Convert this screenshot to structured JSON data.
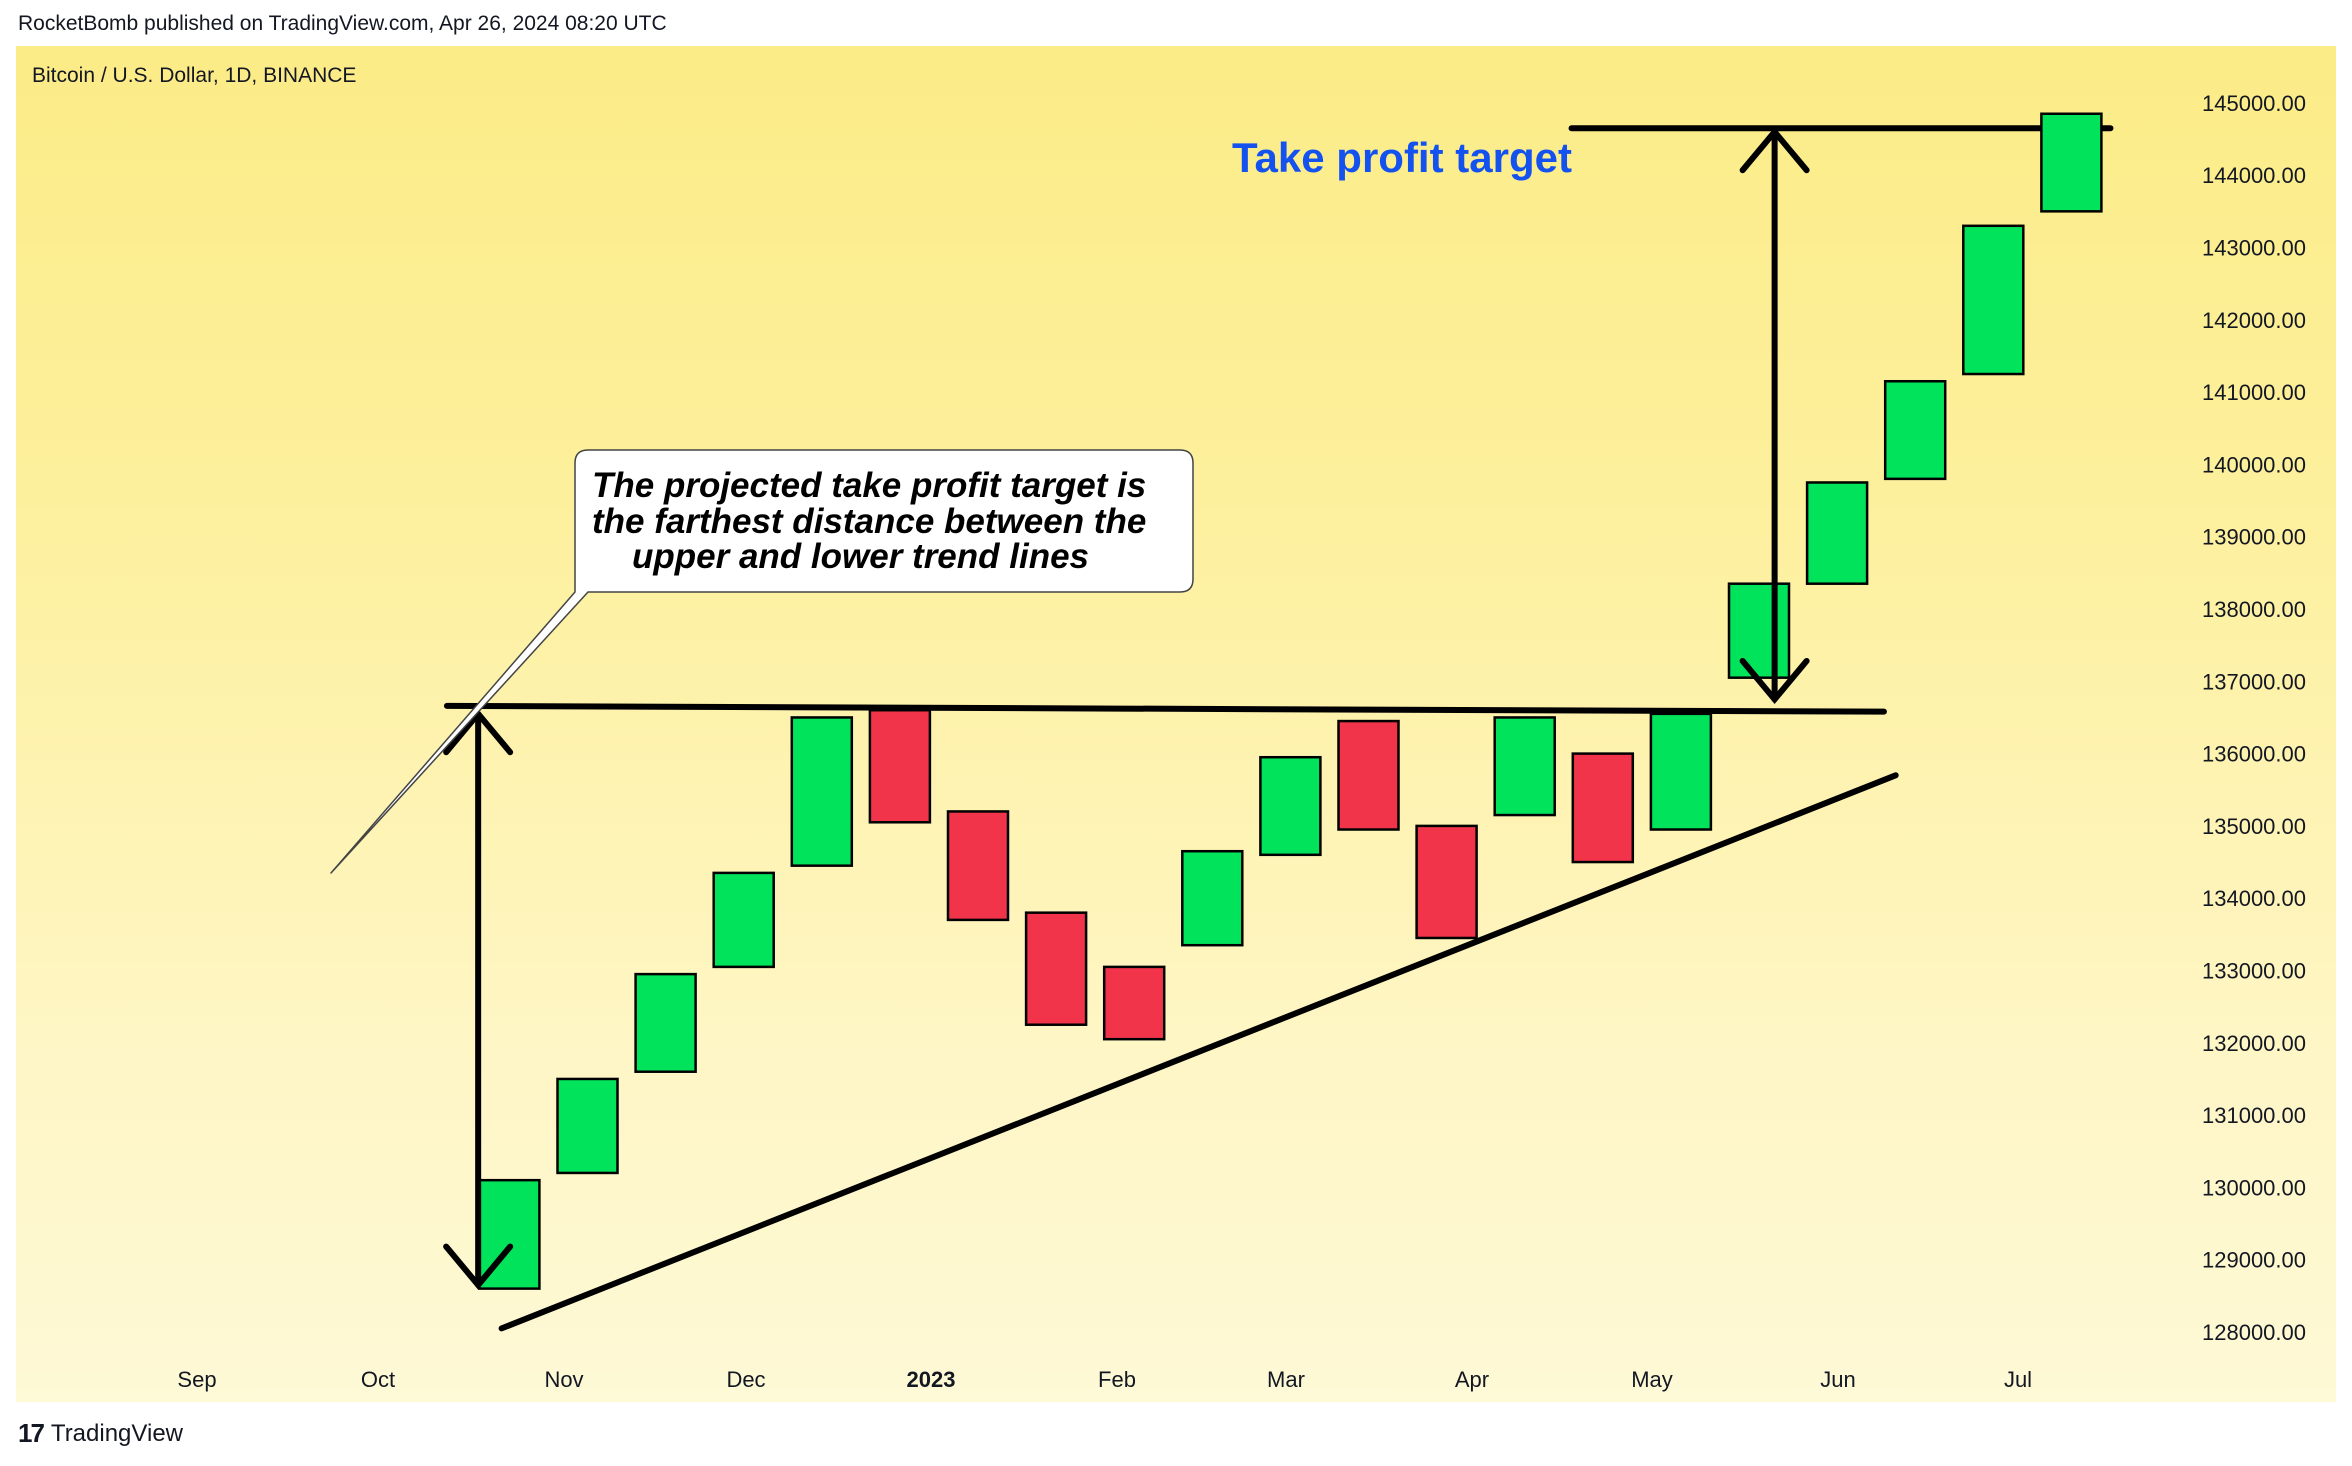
{
  "header": {
    "publisher_line": "RocketBomb published on TradingView.com, Apr 26, 2024 08:20 UTC",
    "symbol_line": "Bitcoin / U.S. Dollar, 1D, BINANCE"
  },
  "footer": {
    "logo_glyph": "17",
    "brand": "TradingView"
  },
  "colors": {
    "up": "#00e35a",
    "down": "#f2344a",
    "annotation": "#1452f0",
    "line": "#000000"
  },
  "chart_data": {
    "type": "candlestick",
    "title": "Bitcoin / U.S. Dollar, 1D, BINANCE",
    "x_tick_labels": [
      "Sep",
      "Oct",
      "Nov",
      "Dec",
      "2023",
      "Feb",
      "Mar",
      "Apr",
      "May",
      "Jun",
      "Jul"
    ],
    "y_tick_labels": [
      "145000.00",
      "144000.00",
      "143000.00",
      "142000.00",
      "141000.00",
      "140000.00",
      "139000.00",
      "138000.00",
      "137000.00",
      "136000.00",
      "135000.00",
      "134000.00",
      "133000.00",
      "132000.00",
      "131000.00",
      "130000.00",
      "129000.00",
      "128000.00"
    ],
    "ylim": [
      127650,
      146400
    ],
    "xlim": [
      0,
      26.5
    ],
    "grid": false,
    "candles": [
      {
        "i": 4,
        "open": 128600,
        "close": 130100,
        "dir": "up"
      },
      {
        "i": 5,
        "open": 130200,
        "close": 131500,
        "dir": "up"
      },
      {
        "i": 6,
        "open": 131600,
        "close": 132950,
        "dir": "up"
      },
      {
        "i": 7,
        "open": 133050,
        "close": 134350,
        "dir": "up"
      },
      {
        "i": 8,
        "open": 134450,
        "close": 136500,
        "dir": "up"
      },
      {
        "i": 9,
        "open": 136600,
        "close": 135050,
        "dir": "down"
      },
      {
        "i": 10,
        "open": 135200,
        "close": 133700,
        "dir": "down"
      },
      {
        "i": 11,
        "open": 133800,
        "close": 132250,
        "dir": "down"
      },
      {
        "i": 12,
        "open": 133050,
        "close": 132050,
        "dir": "down"
      },
      {
        "i": 13,
        "open": 133350,
        "close": 134650,
        "dir": "up"
      },
      {
        "i": 14,
        "open": 134600,
        "close": 135950,
        "dir": "up"
      },
      {
        "i": 15,
        "open": 136450,
        "close": 134950,
        "dir": "down"
      },
      {
        "i": 16,
        "open": 135000,
        "close": 133450,
        "dir": "down"
      },
      {
        "i": 17,
        "open": 135150,
        "close": 136500,
        "dir": "up"
      },
      {
        "i": 18,
        "open": 136000,
        "close": 134500,
        "dir": "down"
      },
      {
        "i": 19,
        "open": 134950,
        "close": 136550,
        "dir": "up"
      },
      {
        "i": 20,
        "open": 137050,
        "close": 138350,
        "dir": "up"
      },
      {
        "i": 21,
        "open": 138350,
        "close": 139750,
        "dir": "up"
      },
      {
        "i": 22,
        "open": 139800,
        "close": 141150,
        "dir": "up"
      },
      {
        "i": 23,
        "open": 141250,
        "close": 143300,
        "dir": "up"
      },
      {
        "i": 24,
        "open": 143500,
        "close": 144850,
        "dir": "up"
      }
    ],
    "trend_lines": [
      {
        "name": "upper-trend-line",
        "x1": 3.2,
        "y1": 136660,
        "x2": 21.6,
        "y2": 136580
      },
      {
        "name": "lower-trend-line",
        "x1": 3.9,
        "y1": 128050,
        "x2": 21.75,
        "y2": 135700
      },
      {
        "name": "target-line",
        "x1": 17.6,
        "y1": 144650,
        "x2": 24.5,
        "y2": 144650
      }
    ],
    "arrows": [
      {
        "name": "pattern-height-arrow",
        "x": 3.6,
        "y_top": 136550,
        "y_bottom": 128650
      },
      {
        "name": "projection-arrow",
        "x": 20.2,
        "y_top": 144600,
        "y_bottom": 136750
      }
    ],
    "annotations": {
      "take_profit_label": "Take profit target",
      "callout_lines": [
        "The projected take profit target is",
        "the farthest distance between the",
        "upper and lower trend lines"
      ]
    }
  }
}
